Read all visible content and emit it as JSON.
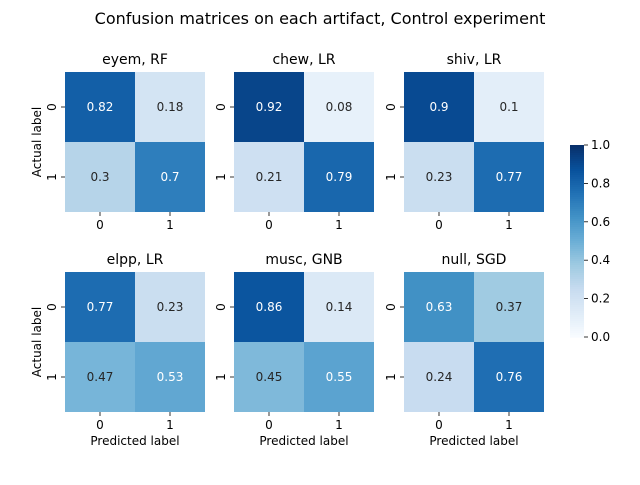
{
  "title": "Confusion matrices on each artifact, Control experiment",
  "colormap": {
    "low": "#f7fbff",
    "high": "#08306b",
    "light_text": "#ffffff",
    "dark_text": "#262626"
  },
  "colorbar": {
    "min": 0.0,
    "max": 1.0,
    "ticks": [
      "0.0",
      "0.2",
      "0.4",
      "0.6",
      "0.8",
      "1.0"
    ]
  },
  "chart_data": [
    {
      "type": "heatmap",
      "title": "eyem, RF",
      "xlabel": "",
      "ylabel": "Actual label",
      "x_ticks": [
        "0",
        "1"
      ],
      "y_ticks": [
        "0",
        "1"
      ],
      "values": [
        [
          0.82,
          0.18
        ],
        [
          0.3,
          0.7
        ]
      ]
    },
    {
      "type": "heatmap",
      "title": "chew, LR",
      "xlabel": "",
      "ylabel": "",
      "x_ticks": [
        "0",
        "1"
      ],
      "y_ticks": [
        "0",
        "1"
      ],
      "values": [
        [
          0.92,
          0.08
        ],
        [
          0.21,
          0.79
        ]
      ]
    },
    {
      "type": "heatmap",
      "title": "shiv, LR",
      "xlabel": "",
      "ylabel": "",
      "x_ticks": [
        "0",
        "1"
      ],
      "y_ticks": [
        "0",
        "1"
      ],
      "values": [
        [
          0.9,
          0.1
        ],
        [
          0.23,
          0.77
        ]
      ]
    },
    {
      "type": "heatmap",
      "title": "elpp, LR",
      "xlabel": "Predicted label",
      "ylabel": "Actual label",
      "x_ticks": [
        "0",
        "1"
      ],
      "y_ticks": [
        "0",
        "1"
      ],
      "values": [
        [
          0.77,
          0.23
        ],
        [
          0.47,
          0.53
        ]
      ]
    },
    {
      "type": "heatmap",
      "title": "musc, GNB",
      "xlabel": "Predicted label",
      "ylabel": "",
      "x_ticks": [
        "0",
        "1"
      ],
      "y_ticks": [
        "0",
        "1"
      ],
      "values": [
        [
          0.86,
          0.14
        ],
        [
          0.45,
          0.55
        ]
      ]
    },
    {
      "type": "heatmap",
      "title": "null, SGD",
      "xlabel": "Predicted label",
      "ylabel": "",
      "x_ticks": [
        "0",
        "1"
      ],
      "y_ticks": [
        "0",
        "1"
      ],
      "values": [
        [
          0.63,
          0.37
        ],
        [
          0.24,
          0.76
        ]
      ]
    }
  ]
}
